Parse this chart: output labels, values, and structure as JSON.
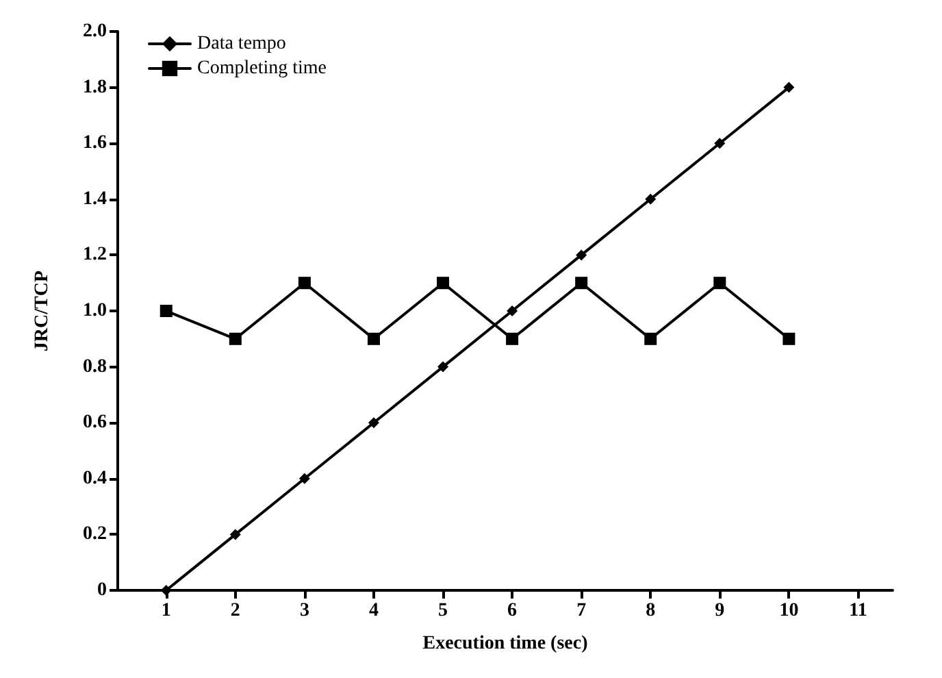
{
  "chart_data": {
    "type": "line",
    "xlabel": "Execution time (sec)",
    "ylabel": "JRC/TCP",
    "x": [
      1,
      2,
      3,
      4,
      5,
      6,
      7,
      8,
      9,
      10
    ],
    "series": [
      {
        "name": "Data tempo",
        "color": "#000000",
        "marker": "diamond",
        "values": [
          0,
          0.2,
          0.4,
          0.6,
          0.8,
          1.0,
          1.2,
          1.4,
          1.6,
          1.8
        ]
      },
      {
        "name": "Completing time",
        "color": "#000000",
        "marker": "square",
        "values": [
          1.0,
          0.9,
          1.1,
          0.9,
          1.1,
          0.9,
          1.1,
          0.9,
          1.1,
          0.9
        ]
      }
    ],
    "xlim": [
      0.3,
      11.5
    ],
    "xticks": [
      1,
      2,
      3,
      4,
      5,
      6,
      7,
      8,
      9,
      10,
      11
    ],
    "ylim": [
      0,
      2
    ],
    "yticks": [
      0,
      0.2,
      0.4,
      0.6,
      0.8,
      {
        "value": 1,
        "label": "1.0"
      },
      1.2,
      1.4,
      1.6,
      1.8,
      {
        "value": 2,
        "label": "2.0"
      }
    ],
    "grid": false,
    "legend": "top left",
    "line_style": "solid"
  }
}
